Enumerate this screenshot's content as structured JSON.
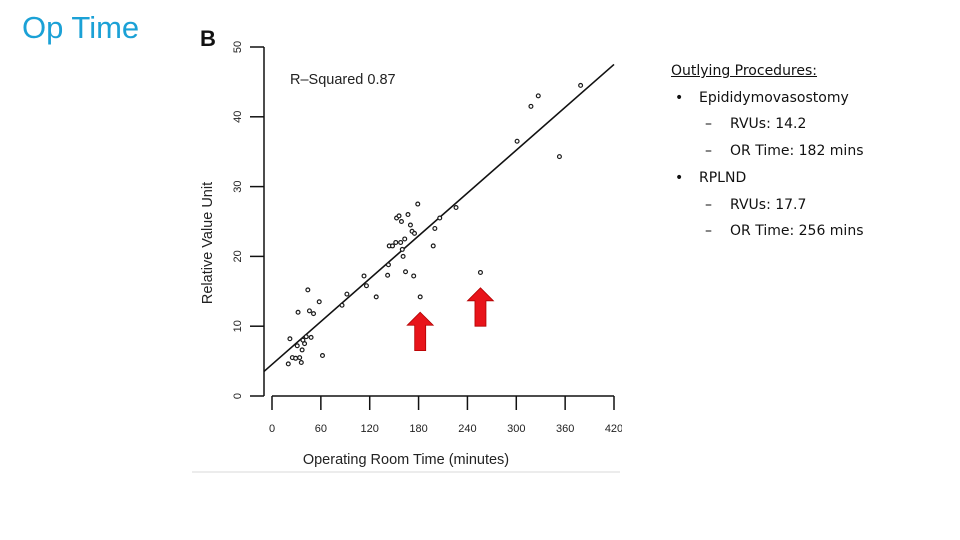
{
  "slide_title": "Op Time",
  "panel_label": "B",
  "annotation": "R–Squared 0.87",
  "notes": {
    "heading": "Outlying Procedures:",
    "items": [
      {
        "label": "Epididymovasostomy",
        "rvus": "RVUs: 14.2",
        "or_time": "OR Time: 182 mins"
      },
      {
        "label": "RPLND",
        "rvus": "RVUs: 17.7",
        "or_time": "OR Time: 256 mins"
      }
    ],
    "bullet": "•",
    "dash": "–"
  },
  "chart_data": {
    "type": "scatter",
    "xlabel": "Operating Room Time (minutes)",
    "ylabel": "Relative Value Unit",
    "xlim": [
      0,
      420
    ],
    "ylim": [
      0,
      50
    ],
    "x_ticks": [
      0,
      60,
      120,
      180,
      240,
      300,
      360,
      420
    ],
    "y_ticks": [
      0,
      10,
      20,
      30,
      40,
      50
    ],
    "x_tick_labels": [
      "0",
      "60",
      "120",
      "180",
      "240",
      "300",
      "360",
      "420"
    ],
    "y_tick_labels": [
      "0",
      "10",
      "20",
      "30",
      "40",
      "50"
    ],
    "r_squared": 0.87,
    "fit_line": {
      "x": [
        -10,
        420
      ],
      "y": [
        3.5,
        47.5
      ]
    },
    "points": [
      {
        "x": 20,
        "y": 4.6
      },
      {
        "x": 22,
        "y": 8.2
      },
      {
        "x": 25,
        "y": 5.5
      },
      {
        "x": 29,
        "y": 5.4
      },
      {
        "x": 31,
        "y": 7.2
      },
      {
        "x": 32,
        "y": 12.0
      },
      {
        "x": 34,
        "y": 5.5
      },
      {
        "x": 36,
        "y": 4.8
      },
      {
        "x": 37,
        "y": 6.6
      },
      {
        "x": 38,
        "y": 8.0
      },
      {
        "x": 40,
        "y": 7.5
      },
      {
        "x": 42,
        "y": 8.5
      },
      {
        "x": 44,
        "y": 15.2
      },
      {
        "x": 46,
        "y": 12.2
      },
      {
        "x": 48,
        "y": 8.4
      },
      {
        "x": 51,
        "y": 11.8
      },
      {
        "x": 58,
        "y": 13.5
      },
      {
        "x": 62,
        "y": 5.8
      },
      {
        "x": 86,
        "y": 13.0
      },
      {
        "x": 92,
        "y": 14.6
      },
      {
        "x": 113,
        "y": 17.2
      },
      {
        "x": 116,
        "y": 15.8
      },
      {
        "x": 128,
        "y": 14.2
      },
      {
        "x": 142,
        "y": 17.3
      },
      {
        "x": 143,
        "y": 18.8
      },
      {
        "x": 144,
        "y": 21.5
      },
      {
        "x": 148,
        "y": 21.5
      },
      {
        "x": 152,
        "y": 22.0
      },
      {
        "x": 153,
        "y": 25.5
      },
      {
        "x": 156,
        "y": 25.8
      },
      {
        "x": 158,
        "y": 22.0
      },
      {
        "x": 159,
        "y": 25.0
      },
      {
        "x": 160,
        "y": 21.0
      },
      {
        "x": 161,
        "y": 20.0
      },
      {
        "x": 163,
        "y": 22.5
      },
      {
        "x": 164,
        "y": 17.8
      },
      {
        "x": 167,
        "y": 26.0
      },
      {
        "x": 170,
        "y": 24.5
      },
      {
        "x": 172,
        "y": 23.6
      },
      {
        "x": 174,
        "y": 17.2
      },
      {
        "x": 175,
        "y": 23.3
      },
      {
        "x": 179,
        "y": 27.5
      },
      {
        "x": 182,
        "y": 14.2
      },
      {
        "x": 198,
        "y": 21.5
      },
      {
        "x": 200,
        "y": 24.0
      },
      {
        "x": 206,
        "y": 25.5
      },
      {
        "x": 226,
        "y": 27.0
      },
      {
        "x": 256,
        "y": 17.7
      },
      {
        "x": 301,
        "y": 36.5
      },
      {
        "x": 318,
        "y": 41.5
      },
      {
        "x": 327,
        "y": 43.0
      },
      {
        "x": 353,
        "y": 34.3
      },
      {
        "x": 379,
        "y": 44.5
      }
    ],
    "highlight_arrows": [
      {
        "x": 182,
        "y_tip": 12.0,
        "y_base": 6.5
      },
      {
        "x": 256,
        "y_tip": 15.5,
        "y_base": 10.0
      }
    ],
    "arrow_color": "#e8141a",
    "point_color": "#1a1a1a",
    "line_color": "#111111",
    "grid": false
  }
}
